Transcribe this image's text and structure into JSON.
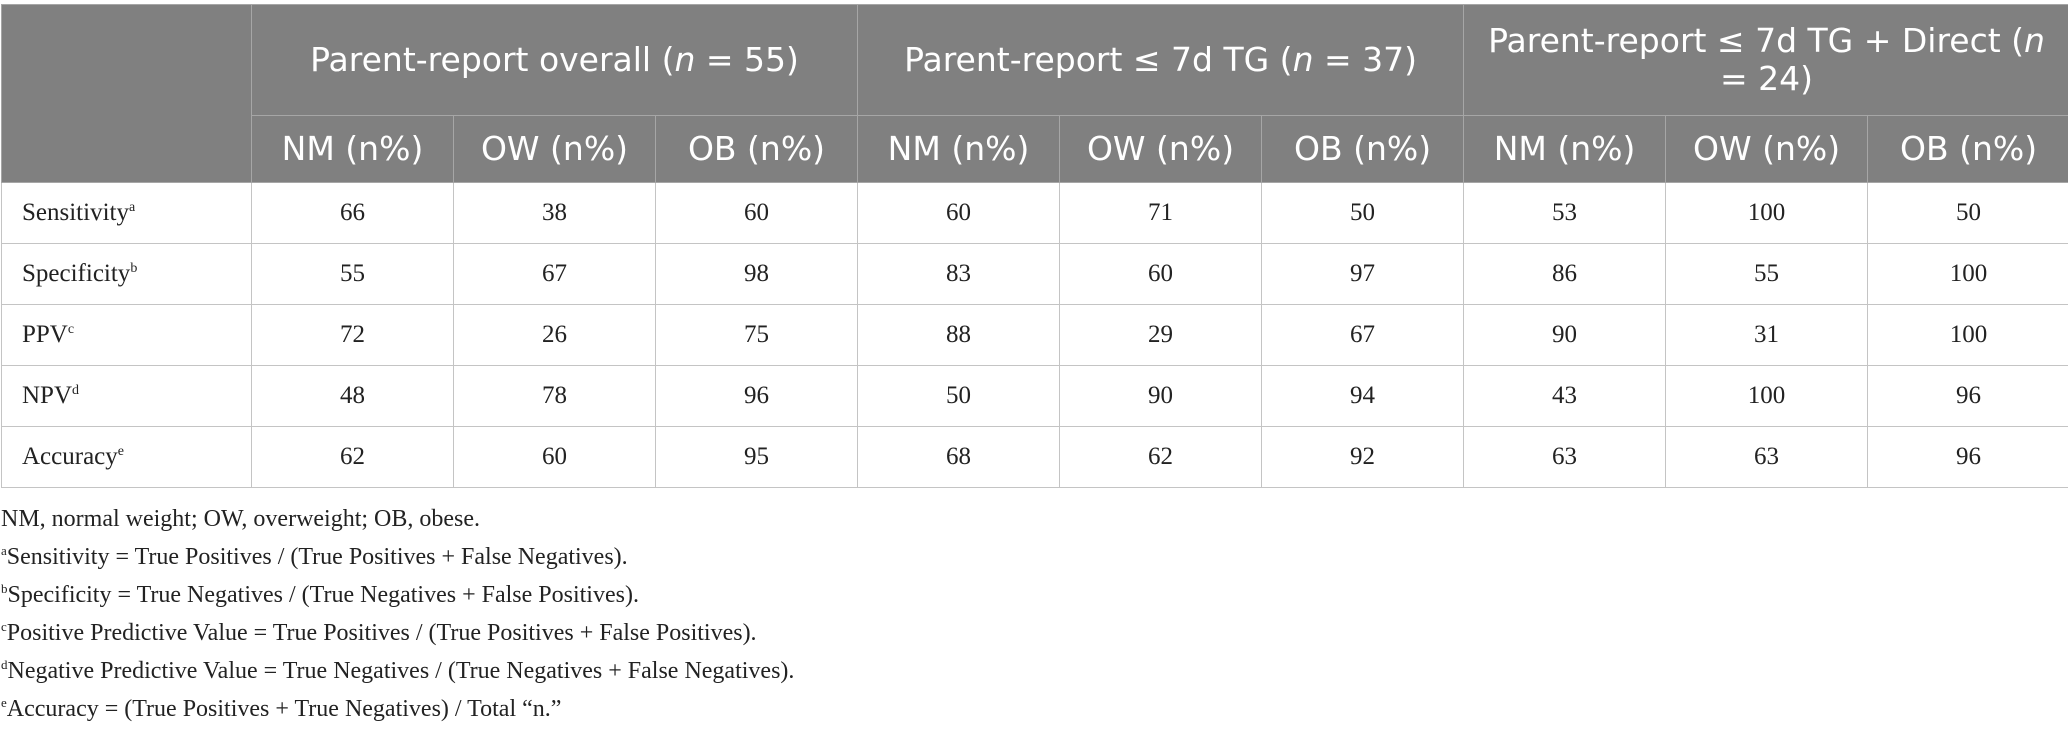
{
  "table": {
    "corner": "",
    "groups": [
      {
        "prefix": "Parent-report overall (",
        "n_symbol": "n",
        "suffix": " = 55)"
      },
      {
        "prefix": "Parent-report ≤ 7d TG (",
        "n_symbol": "n",
        "suffix": " = 37)"
      },
      {
        "prefix": "Parent-report ≤ 7d TG + Direct (",
        "n_symbol": "n",
        "suffix": " = 24)"
      }
    ],
    "subheaders": [
      "NM (n%)",
      "OW (n%)",
      "OB (n%)"
    ],
    "rows": [
      {
        "label": "Sensitivity",
        "sup": "a",
        "values": [
          "66",
          "38",
          "60",
          "60",
          "71",
          "50",
          "53",
          "100",
          "50"
        ]
      },
      {
        "label": "Specificity",
        "sup": "b",
        "values": [
          "55",
          "67",
          "98",
          "83",
          "60",
          "97",
          "86",
          "55",
          "100"
        ]
      },
      {
        "label": "PPV",
        "sup": "c",
        "values": [
          "72",
          "26",
          "75",
          "88",
          "29",
          "67",
          "90",
          "31",
          "100"
        ]
      },
      {
        "label": "NPV",
        "sup": "d",
        "values": [
          "48",
          "78",
          "96",
          "50",
          "90",
          "94",
          "43",
          "100",
          "96"
        ]
      },
      {
        "label": "Accuracy",
        "sup": "e",
        "values": [
          "62",
          "60",
          "95",
          "68",
          "62",
          "92",
          "63",
          "63",
          "96"
        ]
      }
    ]
  },
  "footnotes": {
    "abbrev": "NM, normal weight; OW, overweight; OB, obese.",
    "items": [
      {
        "sup": "a",
        "text": "Sensitivity = True Positives / (True Positives + False Negatives)."
      },
      {
        "sup": "b",
        "text": "Specificity = True Negatives / (True Negatives + False Positives)."
      },
      {
        "sup": "c",
        "text": "Positive Predictive Value = True Positives / (True Positives + False Positives)."
      },
      {
        "sup": "d",
        "text": "Negative Predictive Value = True Negatives / (True Negatives + False Negatives)."
      },
      {
        "sup": "e",
        "text": "Accuracy = (True Positives + True Negatives) / Total “n.”"
      }
    ]
  }
}
